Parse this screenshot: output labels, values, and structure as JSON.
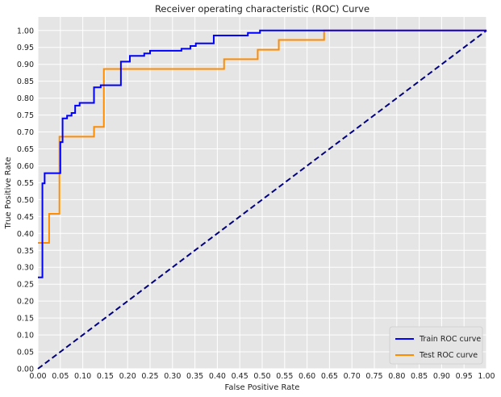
{
  "chart_data": {
    "type": "line",
    "title": "Receiver operating characteristic (ROC) Curve",
    "xlabel": "False Positive Rate",
    "ylabel": "True Positive Rate",
    "xlim": [
      0,
      1
    ],
    "ylim": [
      0,
      1.04
    ],
    "xticks": [
      0,
      0.05,
      0.1,
      0.15,
      0.2,
      0.25,
      0.3,
      0.35,
      0.4,
      0.45,
      0.5,
      0.55,
      0.6,
      0.65,
      0.7,
      0.75,
      0.8,
      0.85,
      0.9,
      0.95,
      1.0
    ],
    "yticks": [
      0,
      0.05,
      0.1,
      0.15,
      0.2,
      0.25,
      0.3,
      0.35,
      0.4,
      0.45,
      0.5,
      0.55,
      0.6,
      0.65,
      0.7,
      0.75,
      0.8,
      0.85,
      0.9,
      0.95,
      1.0
    ],
    "grid": true,
    "legend_position": "lower-right",
    "series": [
      {
        "name": "Train ROC curve",
        "color": "#0000ff",
        "style": "solid",
        "x": [
          0,
          0.01,
          0.01,
          0.015,
          0.015,
          0.022,
          0.022,
          0.05,
          0.05,
          0.055,
          0.055,
          0.065,
          0.065,
          0.075,
          0.075,
          0.083,
          0.083,
          0.093,
          0.093,
          0.1,
          0.1,
          0.125,
          0.125,
          0.14,
          0.14,
          0.185,
          0.185,
          0.205,
          0.205,
          0.237,
          0.237,
          0.25,
          0.25,
          0.32,
          0.32,
          0.34,
          0.34,
          0.352,
          0.352,
          0.392,
          0.392,
          0.468,
          0.468,
          0.495,
          0.495,
          0.636,
          0.636,
          1.0
        ],
        "y": [
          0.27,
          0.27,
          0.548,
          0.548,
          0.578,
          0.578,
          0.578,
          0.578,
          0.67,
          0.67,
          0.74,
          0.74,
          0.748,
          0.748,
          0.756,
          0.756,
          0.778,
          0.778,
          0.786,
          0.786,
          0.786,
          0.786,
          0.832,
          0.832,
          0.838,
          0.838,
          0.908,
          0.908,
          0.925,
          0.925,
          0.932,
          0.932,
          0.94,
          0.94,
          0.946,
          0.946,
          0.954,
          0.954,
          0.962,
          0.962,
          0.985,
          0.985,
          0.993,
          0.993,
          1.0,
          1.0,
          1.0,
          1.0
        ]
      },
      {
        "name": "Test ROC curve",
        "color": "#ff8c00",
        "style": "solid",
        "x": [
          0,
          0.025,
          0.025,
          0.048,
          0.048,
          0.125,
          0.125,
          0.147,
          0.147,
          0.415,
          0.415,
          0.49,
          0.49,
          0.537,
          0.537,
          0.638,
          0.638,
          1.0
        ],
        "y": [
          0.372,
          0.372,
          0.458,
          0.458,
          0.686,
          0.686,
          0.715,
          0.715,
          0.886,
          0.886,
          0.915,
          0.915,
          0.943,
          0.943,
          0.972,
          0.972,
          1.0,
          1.0
        ]
      },
      {
        "name": "",
        "color": "#000080",
        "style": "dashed",
        "x": [
          0,
          1
        ],
        "y": [
          0,
          1
        ]
      }
    ]
  }
}
